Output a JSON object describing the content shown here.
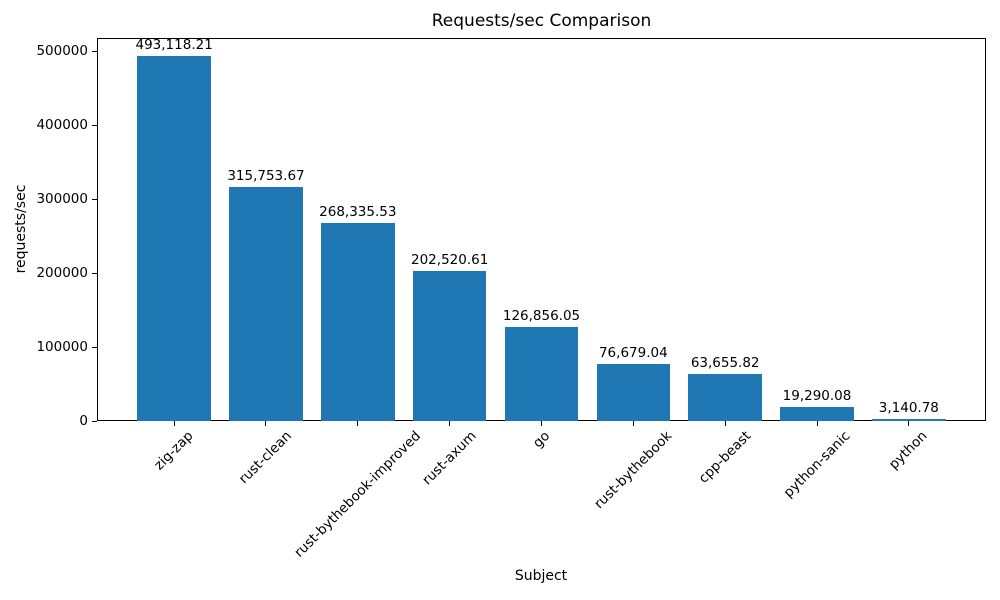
{
  "chart_data": {
    "type": "bar",
    "title": "Requests/sec Comparison",
    "xlabel": "Subject",
    "ylabel": "requests/sec",
    "categories": [
      "zig-zap",
      "rust-clean",
      "rust-bythebook-improved",
      "rust-axum",
      "go",
      "rust-bythebook",
      "cpp-beast",
      "python-sanic",
      "python"
    ],
    "values": [
      493118.21,
      315753.67,
      268335.53,
      202520.61,
      126856.05,
      76679.04,
      63655.82,
      19290.08,
      3140.78
    ],
    "value_labels": [
      "493,118.21",
      "315,753.67",
      "268,335.53",
      "202,520.61",
      "126,856.05",
      "76,679.04",
      "63,655.82",
      "19,290.08",
      "3,140.78"
    ],
    "yticks": [
      0,
      100000,
      200000,
      300000,
      400000,
      500000
    ],
    "ylim": [
      0,
      517774
    ],
    "bar_color": "#1f77b4",
    "text_color": "#000000",
    "grid": false,
    "legend": false,
    "x_tick_rotation_deg": 45
  }
}
